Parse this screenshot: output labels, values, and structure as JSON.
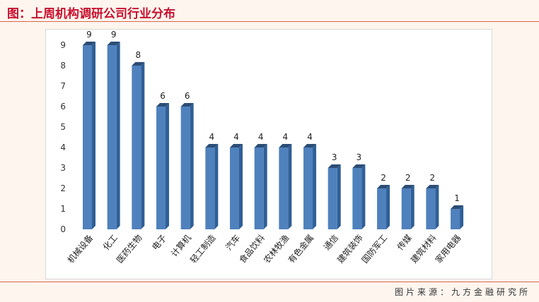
{
  "header": {
    "title": "图：上周机构调研公司行业分布"
  },
  "footer": {
    "source": "图片来源：九方金融研究所"
  },
  "colors": {
    "bar_front": "#4f81bd",
    "bar_side": "#2f5f96",
    "bar_top": "#2c4d75",
    "accent_line": "#d9664a",
    "title_red": "#c8102e"
  },
  "chart_data": {
    "type": "bar",
    "categories": [
      "机械设备",
      "化工",
      "医药生物",
      "电子",
      "计算机",
      "轻工制造",
      "汽车",
      "食品饮料",
      "农林牧渔",
      "有色金属",
      "通信",
      "建筑装饰",
      "国防军工",
      "传媒",
      "建筑材料",
      "家用电器"
    ],
    "values": [
      9,
      9,
      8,
      6,
      6,
      4,
      4,
      4,
      4,
      4,
      3,
      3,
      2,
      2,
      2,
      1
    ],
    "yticks": [
      0,
      1,
      2,
      3,
      4,
      5,
      6,
      7,
      8,
      9
    ],
    "ylim": [
      0,
      9
    ],
    "grid": false,
    "legend": "none",
    "data_labels": true
  }
}
